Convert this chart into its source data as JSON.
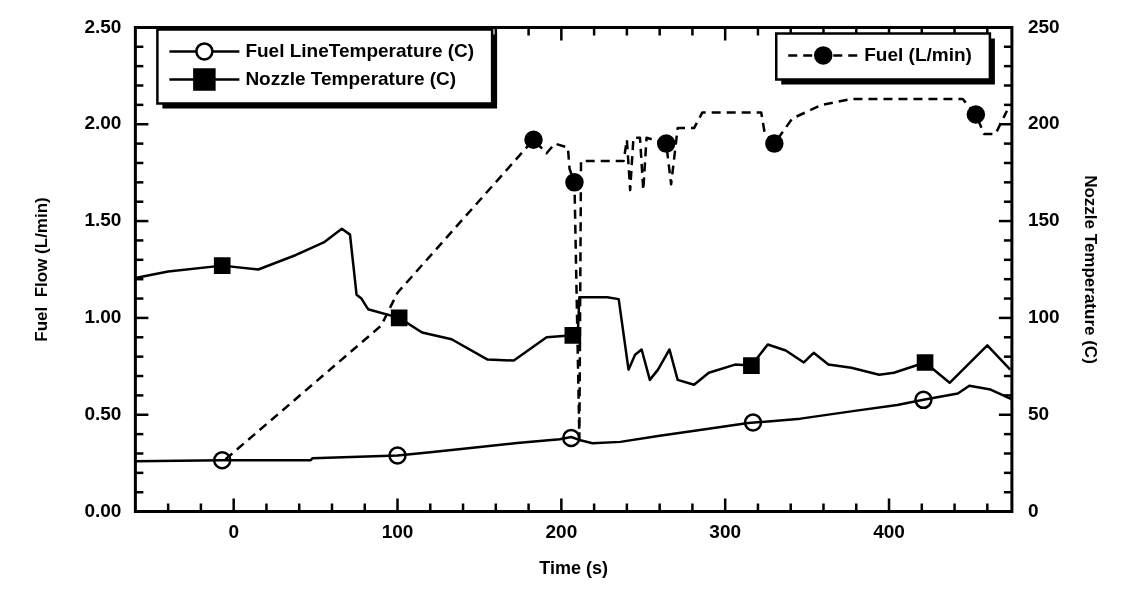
{
  "chart_data": {
    "type": "line",
    "xlabel": "Time (s)",
    "ylabel": "Fuel  Flow (L/min)",
    "y2label": "Nozzle Temperature (C)",
    "legend": "top",
    "xlim": [
      -60,
      475
    ],
    "xticks": [
      {
        "value": -40,
        "label": null
      },
      {
        "value": -20,
        "label": null
      },
      0,
      {
        "value": 20,
        "label": null
      },
      {
        "value": 40,
        "label": null
      },
      {
        "value": 60,
        "label": null
      },
      {
        "value": 80,
        "label": null
      },
      100,
      {
        "value": 120,
        "label": null
      },
      {
        "value": 140,
        "label": null
      },
      {
        "value": 160,
        "label": null
      },
      {
        "value": 180,
        "label": null
      },
      200,
      {
        "value": 220,
        "label": null
      },
      {
        "value": 240,
        "label": null
      },
      {
        "value": 260,
        "label": null
      },
      {
        "value": 280,
        "label": null
      },
      300,
      {
        "value": 320,
        "label": null
      },
      {
        "value": 340,
        "label": null
      },
      {
        "value": 360,
        "label": null
      },
      {
        "value": 380,
        "label": null
      },
      400,
      {
        "value": 420,
        "label": null
      },
      {
        "value": 440,
        "label": null
      },
      {
        "value": 460,
        "label": null
      }
    ],
    "ylim": [
      0,
      2.5
    ],
    "yticks": [
      {
        "value": 0,
        "label": "0.00"
      },
      {
        "value": 0.1,
        "label": null
      },
      {
        "value": 0.2,
        "label": null
      },
      {
        "value": 0.3,
        "label": null
      },
      {
        "value": 0.4,
        "label": null
      },
      {
        "value": 0.5,
        "label": "0.50"
      },
      {
        "value": 0.6,
        "label": null
      },
      {
        "value": 0.7,
        "label": null
      },
      {
        "value": 0.8,
        "label": null
      },
      {
        "value": 0.9,
        "label": null
      },
      {
        "value": 1,
        "label": "1.00"
      },
      {
        "value": 1.1,
        "label": null
      },
      {
        "value": 1.2,
        "label": null
      },
      {
        "value": 1.3,
        "label": null
      },
      {
        "value": 1.4,
        "label": null
      },
      {
        "value": 1.5,
        "label": "1.50"
      },
      {
        "value": 1.6,
        "label": null
      },
      {
        "value": 1.7,
        "label": null
      },
      {
        "value": 1.8,
        "label": null
      },
      {
        "value": 1.9,
        "label": null
      },
      {
        "value": 2,
        "label": "2.00"
      },
      {
        "value": 2.1,
        "label": null
      },
      {
        "value": 2.2,
        "label": null
      },
      {
        "value": 2.3,
        "label": null
      },
      {
        "value": 2.4,
        "label": null
      },
      {
        "value": 2.5,
        "label": "2.50"
      }
    ],
    "y2lim": [
      0,
      250
    ],
    "y2ticks": [
      0,
      {
        "value": 10,
        "label": null
      },
      {
        "value": 20,
        "label": null
      },
      {
        "value": 30,
        "label": null
      },
      {
        "value": 40,
        "label": null
      },
      50,
      {
        "value": 60,
        "label": null
      },
      {
        "value": 70,
        "label": null
      },
      {
        "value": 80,
        "label": null
      },
      {
        "value": 90,
        "label": null
      },
      100,
      {
        "value": 110,
        "label": null
      },
      {
        "value": 120,
        "label": null
      },
      {
        "value": 130,
        "label": null
      },
      {
        "value": 140,
        "label": null
      },
      150,
      {
        "value": 160,
        "label": null
      },
      {
        "value": 170,
        "label": null
      },
      {
        "value": 180,
        "label": null
      },
      {
        "value": 190,
        "label": null
      },
      200,
      {
        "value": 210,
        "label": null
      },
      {
        "value": 220,
        "label": null
      },
      {
        "value": 230,
        "label": null
      },
      {
        "value": 240,
        "label": null
      },
      250
    ],
    "series": [
      {
        "name": "Fuel LineTemperature (C)",
        "axis": "y2",
        "color": "#000000",
        "marker": "none",
        "line_style": "solid",
        "x": [
          -60,
          -7,
          47,
          48,
          100,
          120,
          146,
          173,
          199,
          206,
          211,
          219,
          236,
          259,
          292,
          314,
          346,
          379,
          405,
          421,
          442,
          449,
          462,
          475
        ],
        "values": [
          26,
          26.5,
          26.5,
          27.5,
          29,
          30.7,
          33,
          35.4,
          37.4,
          38.5,
          37,
          35.3,
          36,
          39,
          43,
          45.7,
          48,
          52,
          55,
          57.7,
          61,
          65,
          63,
          58
        ]
      },
      {
        "name": "Nozzle Temperature (C)",
        "axis": "y2",
        "color": "#000000",
        "marker": "none",
        "line_style": "solid",
        "x": [
          -60,
          -40,
          -7,
          15,
          38,
          55,
          66,
          71,
          75,
          78,
          82,
          101,
          115,
          133,
          155,
          171,
          191,
          207,
          210,
          211,
          228,
          235,
          241,
          245,
          249,
          254,
          259,
          266,
          271,
          281,
          290,
          306,
          316,
          326,
          337,
          348,
          354,
          363,
          377,
          394,
          403,
          422,
          437,
          460,
          474
        ],
        "values": [
          120.6,
          124,
          127,
          125,
          132.5,
          139,
          146,
          143,
          112,
          110,
          104.5,
          100,
          92.5,
          89,
          78.5,
          78,
          90,
          91,
          91,
          110.7,
          110.7,
          109.7,
          73.3,
          81,
          83.7,
          68,
          73.3,
          83.7,
          68,
          65.5,
          71.7,
          75.9,
          75.4,
          86.3,
          83.2,
          77,
          82,
          76,
          74.3,
          70.7,
          71.7,
          77,
          66.5,
          85.8,
          73.3
        ]
      },
      {
        "name": "Fuel (L/min)",
        "axis": "y",
        "color": "#000000",
        "marker": "none",
        "line_style": "dashed",
        "x": [
          -5,
          90,
          100,
          183,
          191,
          196,
          204,
          205,
          208,
          211,
          212,
          238,
          240,
          242,
          244,
          248,
          250,
          252,
          264,
          267,
          271,
          281,
          286,
          317,
          322,
          324,
          330,
          341,
          359,
          377,
          445,
          453,
          458,
          465,
          472
        ],
        "values": [
          0.27,
          0.96,
          1.13,
          1.92,
          1.85,
          1.9,
          1.88,
          1.77,
          1.7,
          0.38,
          1.81,
          1.81,
          1.92,
          1.66,
          1.93,
          1.93,
          1.66,
          1.93,
          1.9,
          1.69,
          1.98,
          1.98,
          2.06,
          2.06,
          2.06,
          1.96,
          1.9,
          2.03,
          2.1,
          2.13,
          2.13,
          2.05,
          1.95,
          1.95,
          2.07
        ]
      },
      {
        "type": "scatter",
        "axis": "y2",
        "color": "#ffffff",
        "marker": "circle",
        "x": [
          -7,
          100,
          206,
          317,
          421
        ],
        "values": [
          26.5,
          29,
          38,
          46,
          57.7
        ]
      },
      {
        "type": "scatter",
        "axis": "y2",
        "color": "#000000",
        "marker": "square",
        "x": [
          -7,
          101,
          207,
          316,
          422
        ],
        "values": [
          127,
          100,
          91,
          75.4,
          77
        ]
      },
      {
        "type": "scatter",
        "axis": "y",
        "color": "#000000",
        "marker": "circle",
        "x": [
          183,
          208,
          264,
          330,
          453
        ],
        "values": [
          1.92,
          1.7,
          1.9,
          1.9,
          2.05
        ]
      }
    ]
  }
}
